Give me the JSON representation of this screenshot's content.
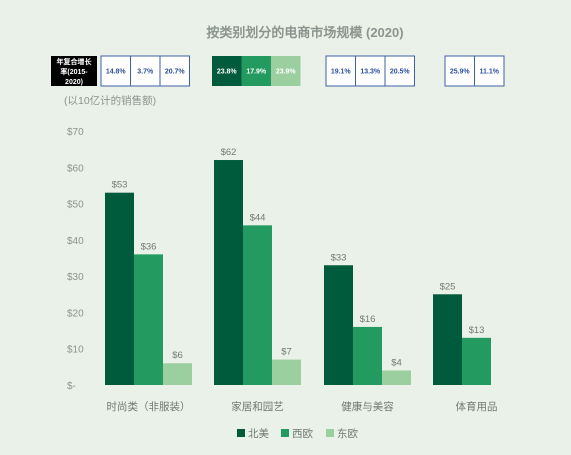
{
  "chart_data": {
    "type": "bar",
    "title": "按类别划分的电商市场规模 (2020)",
    "ylabel": "(以10亿计的销售额)",
    "categories": [
      "时尚类（非服装）",
      "家居和园艺",
      "健康与美容",
      "体育用品"
    ],
    "series": [
      {
        "name": "北美",
        "color": "#005a3c",
        "values": [
          53,
          62,
          33,
          25
        ],
        "labels": [
          "$53",
          "$62",
          "$33",
          "$25"
        ]
      },
      {
        "name": "西欧",
        "color": "#239a5f",
        "values": [
          36,
          44,
          16,
          13
        ],
        "labels": [
          "$36",
          "$44",
          "$16",
          "$13"
        ]
      },
      {
        "name": "东欧",
        "color": "#9ccfa0",
        "values": [
          6,
          7,
          4,
          null
        ],
        "labels": [
          "$6",
          "$7",
          "$4",
          ""
        ]
      }
    ],
    "ylim": [
      0,
      70
    ],
    "yticks": [
      0,
      10,
      20,
      30,
      40,
      50,
      60,
      70
    ],
    "ytick_labels": [
      "$-",
      "$10",
      "$20",
      "$30",
      "$40",
      "$50",
      "$60",
      "$70"
    ],
    "grid": false,
    "legend_position": "bottom-center",
    "cagr": {
      "label": "年复合增长率(2015-2020)",
      "label_lines": [
        "年复合增长",
        "率(2015-",
        "2020)"
      ],
      "groups": [
        [
          "14.8%",
          "3.7%",
          "20.7%"
        ],
        [
          "23.8%",
          "17.9%",
          "23.9%"
        ],
        [
          "19.1%",
          "13.3%",
          "20.5%"
        ],
        [
          "25.9%",
          "11.1%"
        ]
      ]
    }
  }
}
